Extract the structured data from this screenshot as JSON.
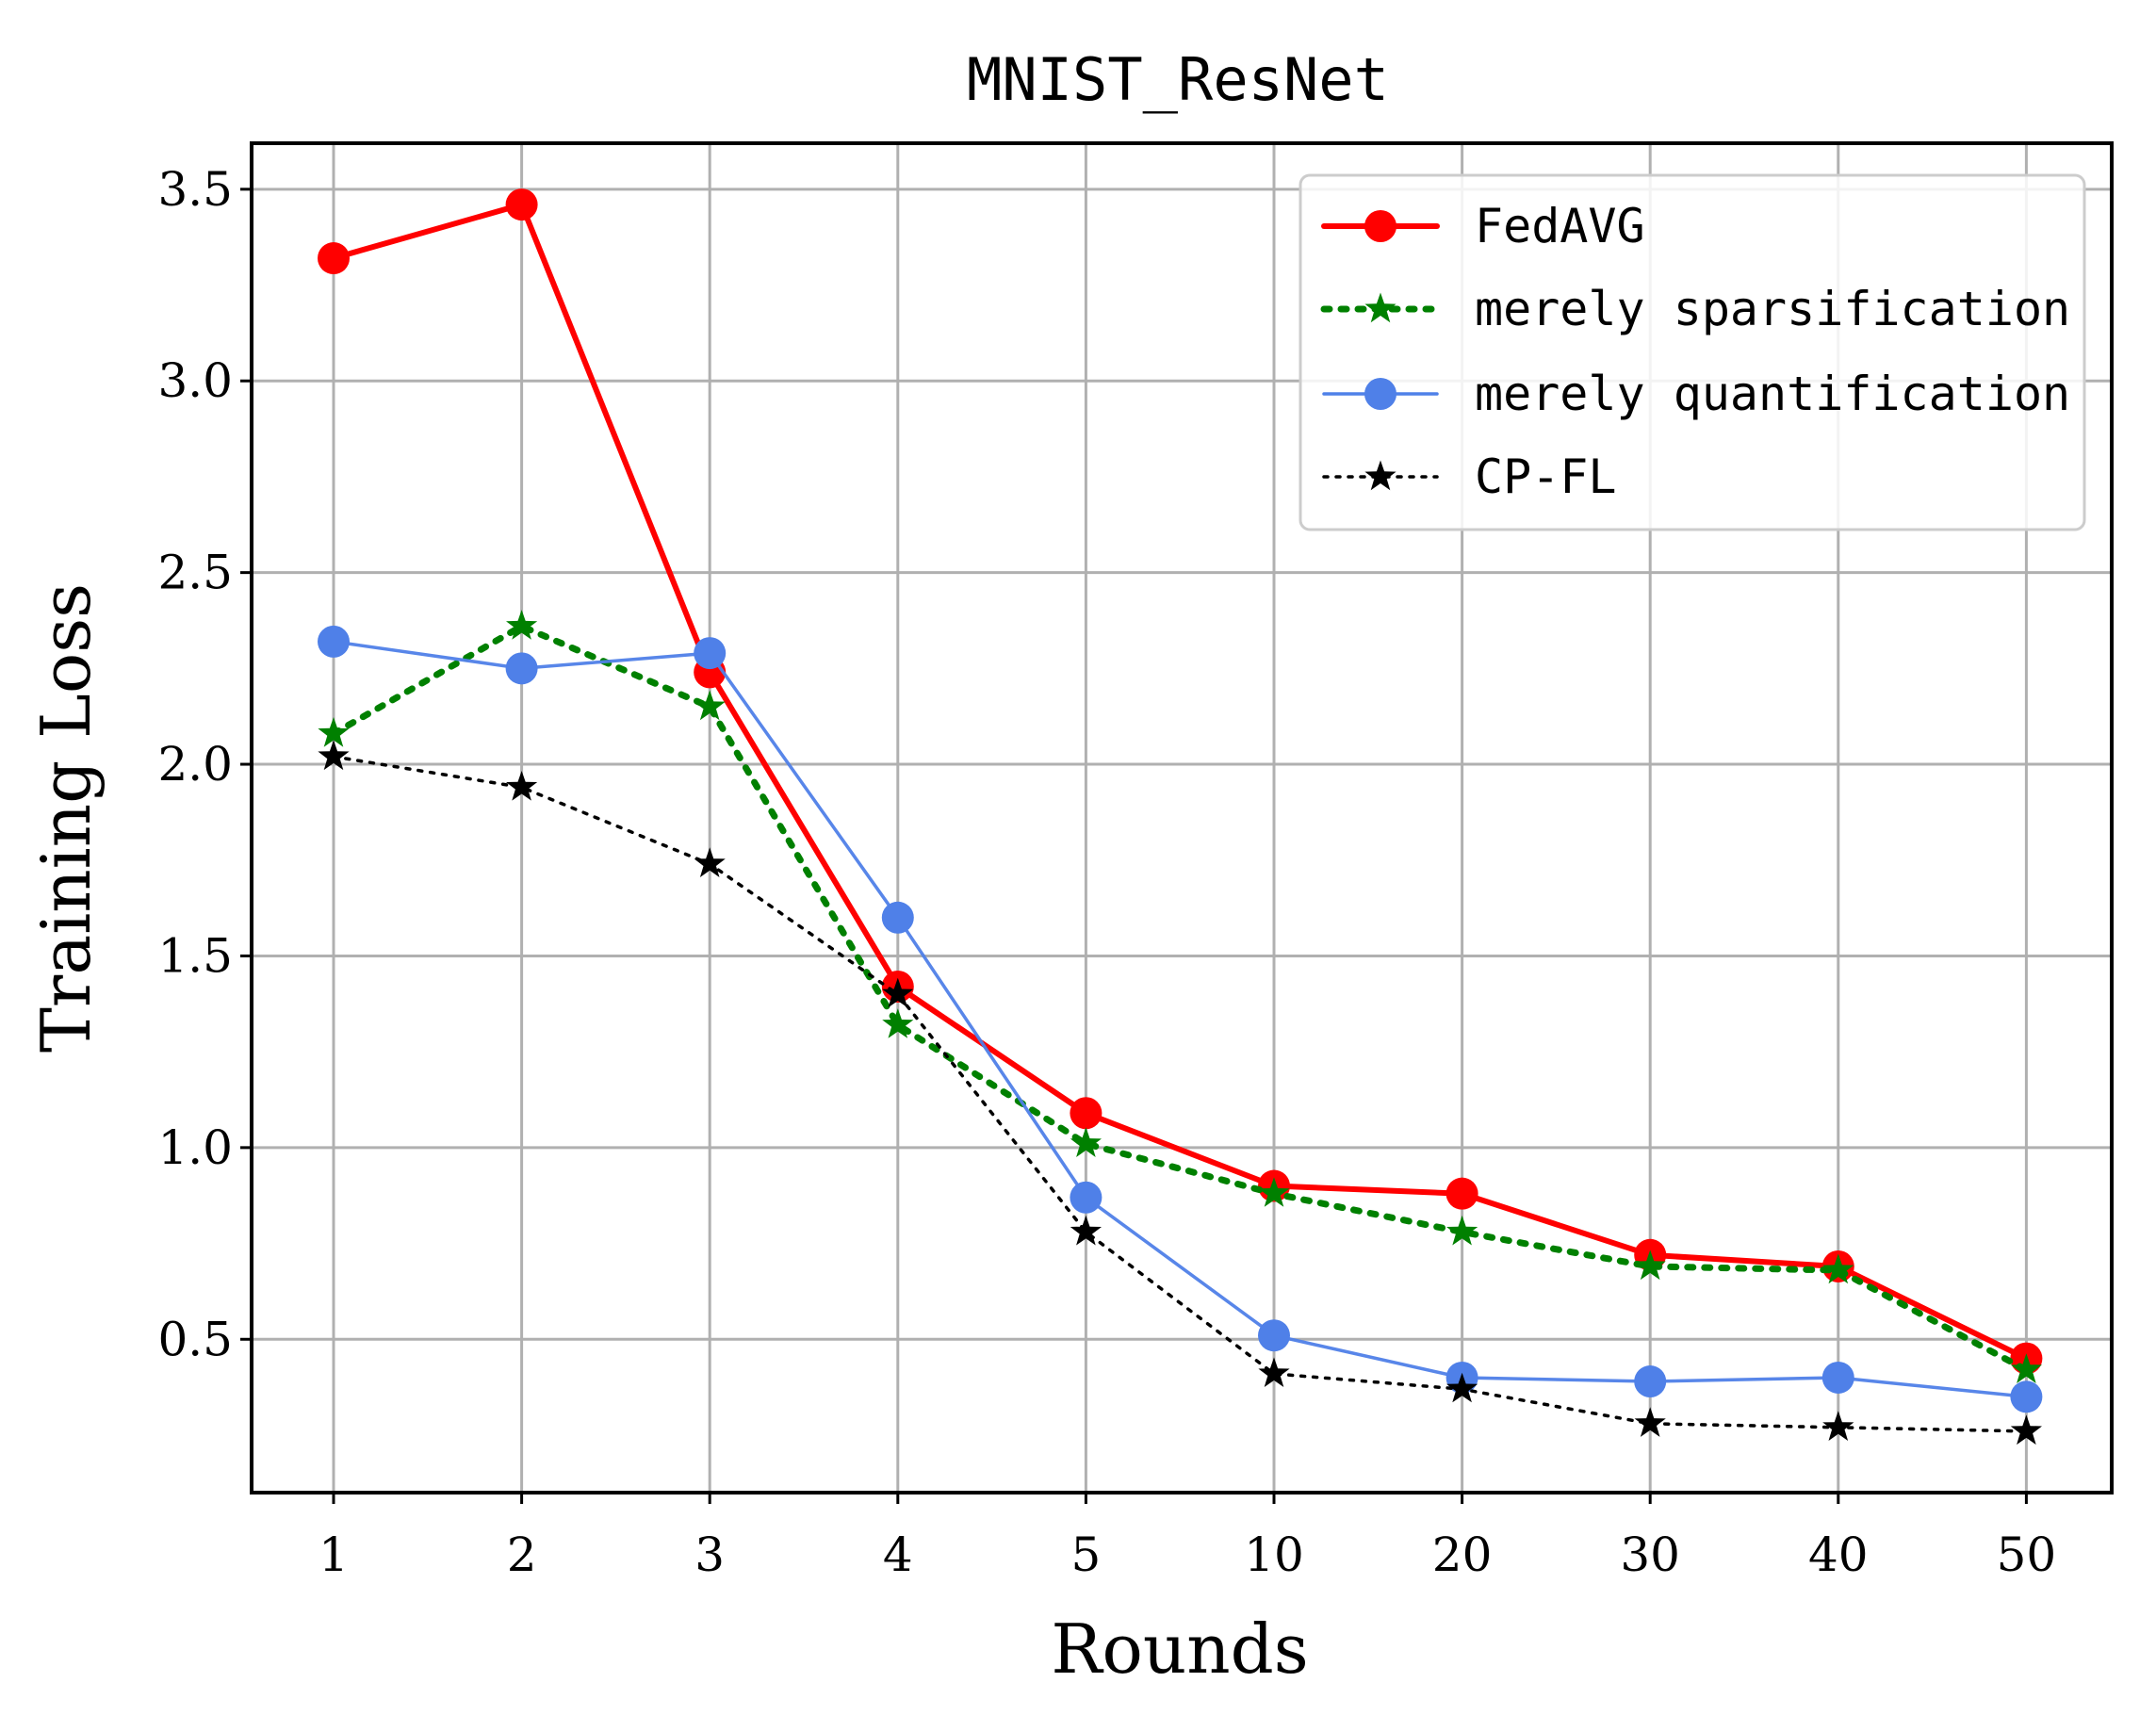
{
  "chart_data": {
    "type": "line",
    "title": "MNIST_ResNet",
    "xlabel": "Rounds",
    "ylabel": "Training Loss",
    "categories": [
      "1",
      "2",
      "3",
      "4",
      "5",
      "10",
      "20",
      "30",
      "40",
      "50"
    ],
    "ylim": [
      0.1,
      3.62
    ],
    "yticks": [
      "0.5",
      "1.0",
      "1.5",
      "2.0",
      "2.5",
      "3.0",
      "3.5"
    ],
    "grid": true,
    "legend_position": "top-right",
    "series": [
      {
        "name": "FedAVG",
        "color": "#ff0000",
        "marker": "circle",
        "line_style": "solid",
        "values": [
          3.32,
          3.46,
          2.24,
          1.42,
          1.09,
          0.9,
          0.88,
          0.72,
          0.69,
          0.45
        ]
      },
      {
        "name": "merely sparsification",
        "color": "#008000",
        "marker": "star",
        "line_style": "dotted",
        "values": [
          2.08,
          2.36,
          2.15,
          1.32,
          1.01,
          0.88,
          0.78,
          0.69,
          0.68,
          0.42
        ]
      },
      {
        "name": "merely quantification",
        "color": "#4f80e8",
        "marker": "circle",
        "line_style": "solid-thin",
        "values": [
          2.32,
          2.25,
          2.29,
          1.6,
          0.87,
          0.51,
          0.4,
          0.39,
          0.4,
          0.35
        ]
      },
      {
        "name": "CP-FL",
        "color": "#000000",
        "marker": "star",
        "line_style": "dotted-thin",
        "values": [
          2.02,
          1.94,
          1.74,
          1.4,
          0.78,
          0.41,
          0.37,
          0.28,
          0.27,
          0.26
        ]
      }
    ]
  }
}
